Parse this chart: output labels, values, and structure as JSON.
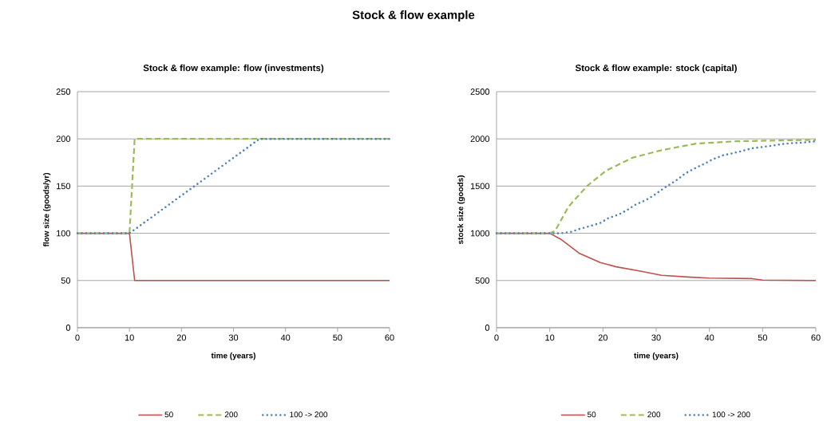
{
  "chart_data": [
    {
      "type": "line",
      "title": "Stock & flow example: flow (investments)",
      "annotations": [
        "Stock & flow example"
      ],
      "xlabel": "time (years)",
      "ylabel": "flow size (goods/yr)",
      "xlim": [
        0,
        60
      ],
      "xticks": [
        0,
        10,
        20,
        30,
        40,
        50,
        60
      ],
      "ylim": [
        0,
        250
      ],
      "yticks": [
        0,
        50,
        100,
        150,
        200,
        250
      ],
      "grid": "y",
      "legend": "bottom",
      "series": [
        {
          "name": "50",
          "color": "#c0504d",
          "line_style": "solid",
          "x": [
            0,
            10,
            11,
            60
          ],
          "values": [
            100,
            100,
            50,
            50
          ]
        },
        {
          "name": "200",
          "color": "#9bbb59",
          "line_style": "dashed",
          "x": [
            0,
            10,
            11,
            60
          ],
          "values": [
            100,
            100,
            200,
            200
          ]
        },
        {
          "name": "100 -> 200",
          "color": "#4f81bd",
          "line_style": "dotted",
          "x": [
            0,
            10,
            35,
            60
          ],
          "values": [
            100,
            100,
            200,
            200
          ]
        }
      ]
    },
    {
      "type": "line",
      "title": "Stock & flow example: stock (capital)",
      "xlabel": "time (years)",
      "ylabel": "stock size (goods)",
      "xlim": [
        0,
        60
      ],
      "xticks": [
        0,
        10,
        20,
        30,
        40,
        50,
        60
      ],
      "ylim": [
        0,
        2500
      ],
      "yticks": [
        0,
        500,
        1000,
        1500,
        2000,
        2500
      ],
      "grid": "y",
      "legend": "bottom",
      "series": [
        {
          "name": "50",
          "color": "#c0504d",
          "line_style": "solid",
          "x": [
            0,
            10,
            12,
            15.5,
            19.5,
            22.5,
            27,
            31,
            36.5,
            40,
            48,
            50,
            60
          ],
          "values": [
            1000,
            1000,
            940,
            790,
            690,
            645,
            600,
            555,
            535,
            525,
            520,
            505,
            500
          ]
        },
        {
          "name": "200",
          "color": "#9bbb59",
          "line_style": "dashed",
          "x": [
            0,
            10,
            11,
            13.5,
            17,
            20.5,
            25.5,
            31,
            37.5,
            45,
            60
          ],
          "values": [
            1000,
            1000,
            1025,
            1280,
            1500,
            1660,
            1800,
            1880,
            1950,
            1975,
            1990
          ]
        },
        {
          "name": "100 -> 200",
          "color": "#4f81bd",
          "line_style": "dotted",
          "x": [
            0,
            12,
            14,
            15.5,
            17.5,
            19.5,
            21,
            23,
            24.5,
            26,
            28,
            29.5,
            31,
            32.5,
            34,
            35.5,
            37.5,
            39,
            40.5,
            42.5,
            44.5,
            46,
            48,
            50,
            52,
            53.5,
            55.5,
            57.5,
            60
          ],
          "values": [
            1000,
            1000,
            1015,
            1045,
            1075,
            1110,
            1160,
            1200,
            1245,
            1300,
            1350,
            1400,
            1460,
            1515,
            1570,
            1635,
            1695,
            1735,
            1780,
            1825,
            1850,
            1870,
            1900,
            1915,
            1930,
            1945,
            1955,
            1960,
            1975
          ]
        }
      ]
    }
  ]
}
